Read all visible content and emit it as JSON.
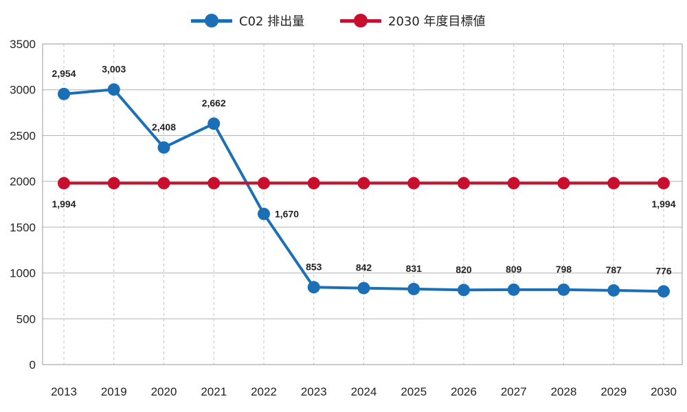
{
  "chart_data": {
    "type": "line",
    "title": "",
    "xlabel": "",
    "ylabel": "",
    "categories": [
      "2013",
      "2019",
      "2020",
      "2021",
      "2022",
      "2023",
      "2024",
      "2025",
      "2026",
      "2027",
      "2028",
      "2029",
      "2030"
    ],
    "ylim": [
      0,
      3500
    ],
    "yticks": [
      0,
      500,
      1000,
      1500,
      2000,
      2500,
      3000,
      3500
    ],
    "grid": true,
    "legend_position": "top-center",
    "series": [
      {
        "name": "C02 排出量",
        "color": "#1a6fb7",
        "values": [
          2954,
          3003,
          2408,
          2662,
          1670,
          853,
          842,
          831,
          820,
          809,
          798,
          787,
          776
        ],
        "plotted_values": [
          2954,
          3003,
          2370,
          2630,
          1645,
          845,
          835,
          825,
          815,
          818,
          818,
          810,
          800
        ],
        "labels": [
          "2,954",
          "3,003",
          "2,408",
          "2,662",
          "1,670",
          "853",
          "842",
          "831",
          "820",
          "809",
          "798",
          "787",
          "776"
        ],
        "label_position": [
          "above",
          "above",
          "above",
          "above",
          "right",
          "above",
          "above",
          "above",
          "above",
          "above",
          "above",
          "above",
          "above"
        ]
      },
      {
        "name": "2030 年度目標値",
        "color": "#c8102e",
        "values": [
          1994,
          1994,
          1994,
          1994,
          1994,
          1994,
          1994,
          1994,
          1994,
          1994,
          1994,
          1994,
          1994
        ],
        "plotted_values": [
          1980,
          1980,
          1980,
          1980,
          1980,
          1980,
          1980,
          1980,
          1980,
          1980,
          1980,
          1980,
          1980
        ],
        "labels": [
          "1,994",
          "",
          "",
          "",
          "",
          "",
          "",
          "",
          "",
          "",
          "",
          "",
          "1,994"
        ],
        "label_position": [
          "below",
          "none",
          "none",
          "none",
          "none",
          "none",
          "none",
          "none",
          "none",
          "none",
          "none",
          "none",
          "below"
        ]
      }
    ]
  },
  "legend": {
    "items": [
      {
        "label": "C02 排出量",
        "color": "#1a6fb7"
      },
      {
        "label": "2030 年度目標値",
        "color": "#c8102e"
      }
    ]
  }
}
